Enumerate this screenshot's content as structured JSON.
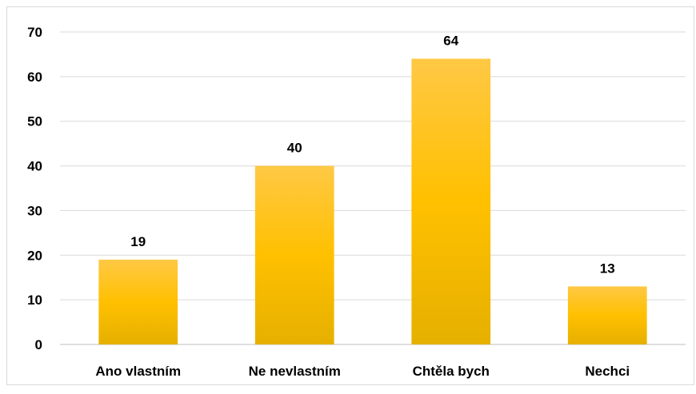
{
  "chart_data": {
    "type": "bar",
    "title": "",
    "xlabel": "",
    "ylabel": "",
    "categories": [
      "Ano vlastním",
      "Ne nevlastním",
      "Chtěla bych",
      "Nechci"
    ],
    "values": [
      19,
      40,
      64,
      13
    ],
    "ylim": [
      0,
      70
    ],
    "yticks": [
      0,
      10,
      20,
      30,
      40,
      50,
      60,
      70
    ],
    "grid": true,
    "legend": "none",
    "bar_color": "#FFC000"
  }
}
